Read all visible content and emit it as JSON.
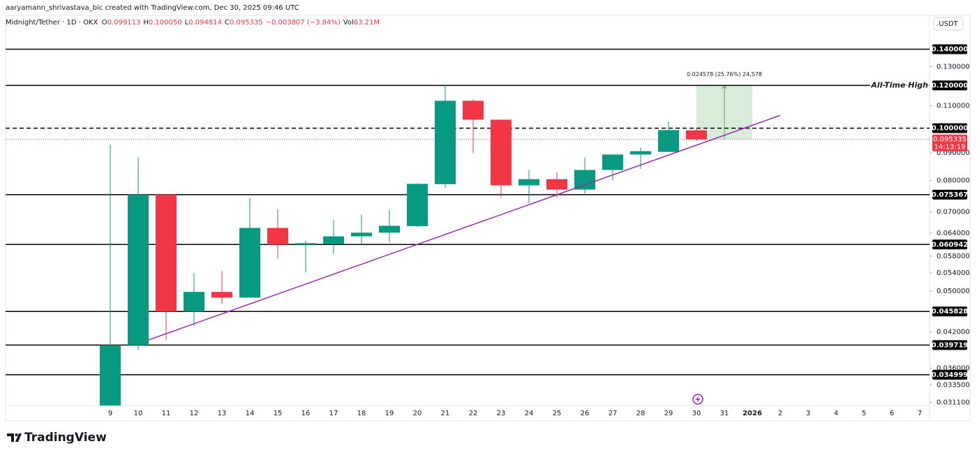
{
  "header": "aaryamann_shrivastava_bic created with TradingView.com, Dec 30, 2025 09:46 UTC",
  "legend": {
    "symbol": "Midnight/Tether · 1D · OKX",
    "fields": [
      {
        "key": "O",
        "value": "0.099113"
      },
      {
        "key": "H",
        "value": "0.100050"
      },
      {
        "key": "L",
        "value": "0.094814"
      },
      {
        "key": "C",
        "value": "0.095335"
      }
    ],
    "change": "−0.003807 (−3.84%)",
    "volume_key": "Vol",
    "volume": "63.21M"
  },
  "currency": "USDT",
  "brand": "TradingView",
  "chart_data": {
    "type": "candlestick",
    "log_scale": true,
    "up_color": "#089981",
    "down_color": "#f23645",
    "categories": [
      "9",
      "10",
      "11",
      "12",
      "13",
      "14",
      "15",
      "16",
      "17",
      "18",
      "19",
      "20",
      "21",
      "22",
      "23",
      "24",
      "25",
      "26",
      "27",
      "28",
      "29",
      "30",
      "31",
      "2026",
      "2",
      "3",
      "4",
      "5",
      "6",
      "7"
    ],
    "open": [
      0.0307,
      0.0397,
      0.0754,
      0.0458,
      0.0498,
      0.0486,
      0.0654,
      0.0609,
      0.061,
      0.0631,
      0.0641,
      0.0659,
      0.0788,
      0.1124,
      0.1037,
      0.0784,
      0.0805,
      0.077,
      0.0837,
      0.0894,
      0.0904,
      0.099113,
      null,
      null,
      null,
      null,
      null,
      null,
      null,
      null
    ],
    "high": [
      0.0932,
      0.0883,
      0.0754,
      0.054,
      0.0544,
      0.0743,
      0.0709,
      0.0619,
      0.0676,
      0.0692,
      0.0707,
      0.0791,
      0.12,
      0.113,
      0.1037,
      0.0837,
      0.0828,
      0.0883,
      0.0894,
      0.0921,
      0.1028,
      0.10005,
      null,
      null,
      null,
      null,
      null,
      null,
      null,
      null
    ],
    "low": [
      0.0307,
      0.0389,
      0.0406,
      0.0431,
      0.0473,
      0.0486,
      0.0574,
      0.0541,
      0.0586,
      0.0609,
      0.0616,
      0.0657,
      0.0776,
      0.0899,
      0.0745,
      0.0726,
      0.0744,
      0.0757,
      0.08,
      0.0841,
      0.0904,
      0.094814,
      null,
      null,
      null,
      null,
      null,
      null,
      null,
      null
    ],
    "close": [
      0.0397,
      0.0754,
      0.0458,
      0.0498,
      0.0486,
      0.0654,
      0.0609,
      0.0613,
      0.0631,
      0.0641,
      0.066,
      0.0789,
      0.1124,
      0.1037,
      0.0784,
      0.0805,
      0.077,
      0.0837,
      0.0894,
      0.0907,
      0.0992,
      0.095335,
      null,
      null,
      null,
      null,
      null,
      null,
      null,
      null
    ],
    "ylim": [
      0.0307,
      0.151
    ],
    "yticks": [
      {
        "value": 0.13,
        "label": "0.130000"
      },
      {
        "value": 0.11,
        "label": "0.110000"
      },
      {
        "value": 0.09,
        "label": "0.090000"
      },
      {
        "value": 0.08,
        "label": "0.080000"
      },
      {
        "value": 0.07,
        "label": "0.070000"
      },
      {
        "value": 0.064,
        "label": "0.064000"
      },
      {
        "value": 0.058,
        "label": "0.058000"
      },
      {
        "value": 0.054,
        "label": "0.054000"
      },
      {
        "value": 0.05,
        "label": "0.050000"
      },
      {
        "value": 0.042,
        "label": "0.042000"
      },
      {
        "value": 0.036,
        "label": "0.036000"
      },
      {
        "value": 0.0335,
        "label": "0.033500"
      },
      {
        "value": 0.0311,
        "label": "0.031100"
      }
    ],
    "levels": [
      {
        "value": 0.14,
        "label": "0.140000"
      },
      {
        "value": 0.12,
        "label": "0.120000",
        "note": "All-Time High"
      },
      {
        "value": 0.1,
        "label": "0.100000",
        "style": "dashed"
      },
      {
        "value": 0.075367,
        "label": "0.075367"
      },
      {
        "value": 0.060942,
        "label": "0.060942"
      },
      {
        "value": 0.045828,
        "label": "0.045828"
      },
      {
        "value": 0.039719,
        "label": "0.039719"
      },
      {
        "value": 0.034999,
        "label": "0.034999"
      }
    ],
    "trendline": {
      "color": "#9c27b0",
      "start": [
        1.375,
        0.0406
      ],
      "end": [
        24,
        0.1056
      ]
    },
    "measure": {
      "label": "0.024578 (25.76%) 24,578",
      "from": 0.095422,
      "to": 0.12,
      "start": 21,
      "end": 23
    },
    "countdown": "14:13:19"
  }
}
